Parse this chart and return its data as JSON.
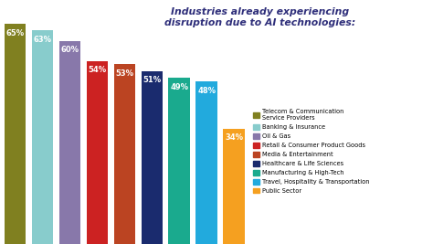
{
  "title": "Industries already experiencing\ndisruption due to AI technologies:",
  "title_color": "#2e2e7a",
  "values": [
    65,
    63,
    60,
    54,
    53,
    51,
    49,
    48,
    34
  ],
  "bar_colors": [
    "#808020",
    "#88cccc",
    "#8878aa",
    "#cc2222",
    "#bb4422",
    "#1a2b6e",
    "#1aaa8e",
    "#22aadd",
    "#f5a020"
  ],
  "label_color": "#ffffff",
  "legend_labels": [
    "Telecom & Communication\nService Providers",
    "Banking & Insurance",
    "Oil & Gas",
    "Retail & Consumer Product Goods",
    "Media & Entertainment",
    "Healthcare & Life Sciences",
    "Manufacturing & High-Tech",
    "Travel, Hospitality & Transportation",
    "Public Sector"
  ],
  "ylim": [
    0,
    72
  ],
  "background_color": "#ffffff",
  "figsize": [
    4.74,
    2.67
  ],
  "dpi": 100
}
